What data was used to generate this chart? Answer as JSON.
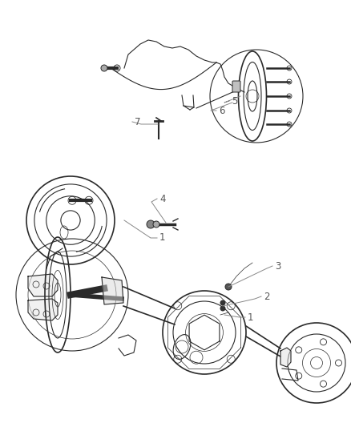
{
  "bg_color": "#ffffff",
  "line_color": "#2a2a2a",
  "label_color": "#2a2a2a",
  "fig_width": 4.38,
  "fig_height": 5.33,
  "dpi": 100,
  "lw": 0.8,
  "lw_thin": 0.5,
  "lw_thick": 1.2
}
